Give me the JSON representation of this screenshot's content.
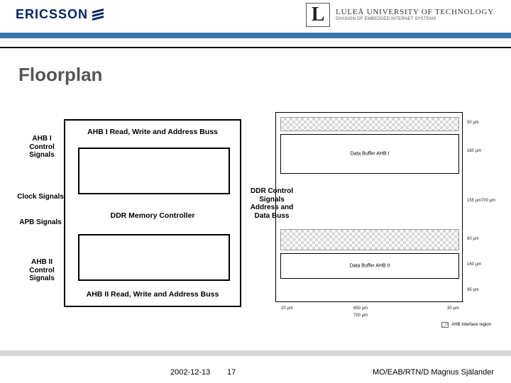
{
  "header": {
    "ericsson_word": "ERICSSON",
    "lulea_line1": "LULEÅ UNIVERSITY OF TECHNOLOGY",
    "lulea_line2": "DIVISION OF EMBEDDED INTERNET SYSTEMS",
    "rule_color": "#3a75b0"
  },
  "title": "Floorplan",
  "left_diagram": {
    "top_label": "AHB I Read, Write and Address Buss",
    "mid_label": "DDR Memory Controller",
    "bot_label": "AHB II Read, Write and Address Buss",
    "side": {
      "ahb1": "AHB I Control Signals",
      "clock": "Clock Signals",
      "apb": "APB Signals",
      "ahb2": "AHB II Control Signals",
      "ddr": "DDR Control Signals Address and Data Buss"
    }
  },
  "right_diagram": {
    "buffer1_label": "Data Buffer AHB I",
    "buffer2_label": "Data Buffer AHB II",
    "dims": {
      "r1": "50 µm",
      "r2": "160 µm",
      "r3": "155 µm",
      "r3b": "700 µm",
      "r4": "80 µm",
      "r5": "160 µm",
      "r6": "95 µm",
      "b1": "20 µm",
      "b2": "650 µm",
      "b3": "30 µm",
      "b4": "700 µm"
    },
    "legend": "AHB Interface region",
    "checker_light": "#d6d6d6"
  },
  "footer": {
    "date": "2002-12-13",
    "page": "17",
    "ref": "MO/EAB/RTN/D Magnus Själander"
  }
}
